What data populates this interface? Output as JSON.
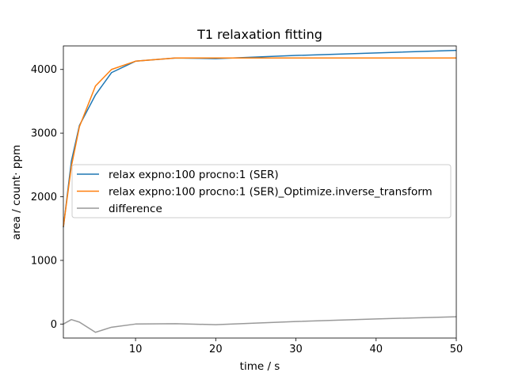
{
  "chart_data": {
    "type": "line",
    "title": "T1 relaxation fitting",
    "xlabel": "time / s",
    "ylabel": "area / count· ppm",
    "xlim": [
      1,
      50
    ],
    "ylim": [
      -220,
      4370
    ],
    "xticks": [
      10,
      20,
      30,
      40,
      50
    ],
    "yticks": [
      0,
      1000,
      2000,
      3000,
      4000
    ],
    "grid": false,
    "legend_position": "center-right",
    "series": [
      {
        "name": "relax expno:100 procno:1 (SER)",
        "color": "#1f77b4",
        "x": [
          1,
          2,
          3,
          5,
          7,
          10,
          15,
          20,
          30,
          40,
          50
        ],
        "y": [
          1520,
          2560,
          3120,
          3600,
          3950,
          4130,
          4180,
          4170,
          4220,
          4260,
          4300
        ]
      },
      {
        "name": "relax expno:100 procno:1 (SER)_Optimize.inverse_transform",
        "color": "#ff7f0e",
        "x": [
          1,
          2,
          3,
          5,
          7,
          10,
          15,
          20,
          30,
          40,
          50
        ],
        "y": [
          1530,
          2480,
          3100,
          3740,
          4000,
          4130,
          4180,
          4180,
          4180,
          4180,
          4180
        ]
      },
      {
        "name": "difference",
        "color": "#999999",
        "x": [
          1,
          2,
          3,
          5,
          7,
          10,
          15,
          20,
          30,
          40,
          50
        ],
        "y": [
          0,
          70,
          30,
          -130,
          -50,
          0,
          5,
          -10,
          40,
          80,
          115
        ]
      }
    ]
  }
}
